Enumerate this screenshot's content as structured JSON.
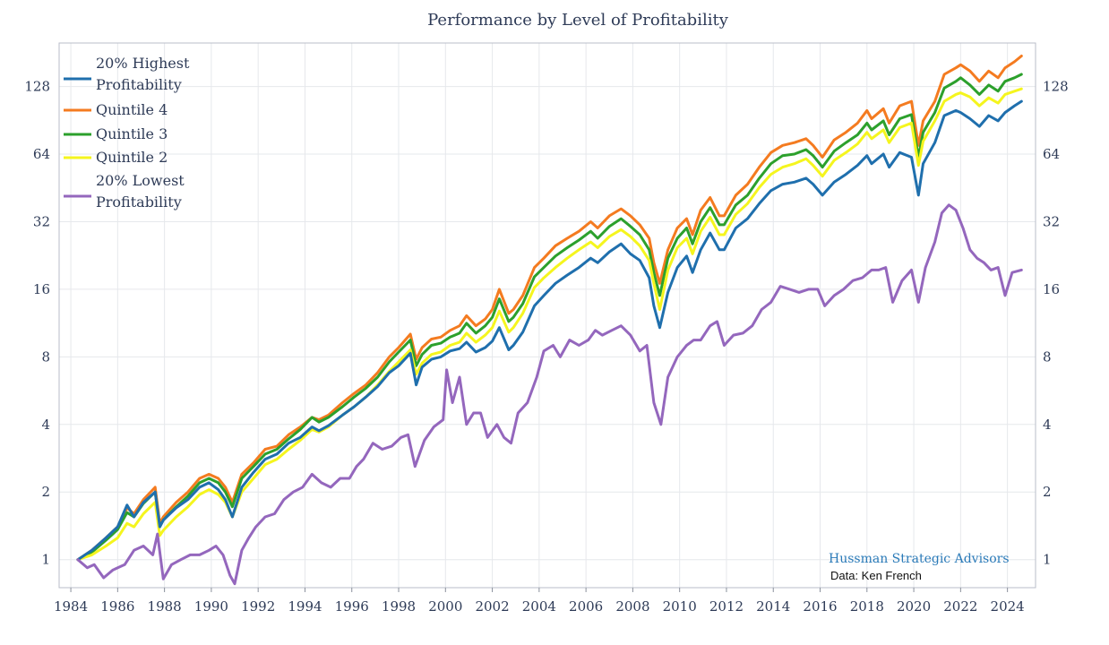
{
  "chart_data": {
    "type": "line",
    "title": "Performance by Level of Profitability",
    "xlabel": "",
    "ylabel": "",
    "y_scale": "log2",
    "ylim": [
      0.75,
      200
    ],
    "xlim": [
      1983.5,
      2025.2
    ],
    "y_ticks": [
      1,
      2,
      4,
      8,
      16,
      32,
      64,
      128
    ],
    "y_tick_labels": [
      "1",
      "2",
      "4",
      "8",
      "16",
      "32",
      "64",
      "128"
    ],
    "x_ticks": [
      1984,
      1986,
      1988,
      1990,
      1992,
      1994,
      1996,
      1998,
      2000,
      2002,
      2004,
      2006,
      2008,
      2010,
      2012,
      2014,
      2016,
      2018,
      2020,
      2022,
      2024
    ],
    "x_tick_labels": [
      "1984",
      "1986",
      "1988",
      "1990",
      "1992",
      "1994",
      "1996",
      "1998",
      "2000",
      "2002",
      "2004",
      "2006",
      "2008",
      "2010",
      "2012",
      "2014",
      "2016",
      "2018",
      "2020",
      "2022",
      "2024"
    ],
    "grid": true,
    "legend_position": "top-left",
    "legend": [
      {
        "line1": "20% Highest",
        "line2": "Profitability",
        "color": "#1f6fad"
      },
      {
        "line1": "Quintile 4",
        "line2": "",
        "color": "#f47b20"
      },
      {
        "line1": "Quintile 3",
        "line2": "",
        "color": "#2ca02c"
      },
      {
        "line1": "Quintile 2",
        "line2": "",
        "color": "#f5f51e"
      },
      {
        "line1": "20% Lowest",
        "line2": "Profitability",
        "color": "#9467bd"
      }
    ],
    "annotation": {
      "main": "Hussman Strategic Advisors",
      "sub": "Data: Ken French"
    },
    "series": [
      {
        "name": "Quintile 4",
        "color": "#f47b20",
        "x": [
          1984.3,
          1984.9,
          1985.5,
          1986.0,
          1986.4,
          1986.7,
          1987.1,
          1987.6,
          1987.8,
          1987.95,
          1988.5,
          1989.0,
          1989.5,
          1989.9,
          1990.3,
          1990.6,
          1990.9,
          1991.3,
          1991.8,
          1992.3,
          1992.8,
          1993.3,
          1993.8,
          1994.3,
          1994.6,
          1995.0,
          1995.6,
          1996.1,
          1996.6,
          1997.1,
          1997.6,
          1998.0,
          1998.5,
          1998.75,
          1999.0,
          1999.4,
          1999.8,
          2000.2,
          2000.6,
          2000.9,
          2001.3,
          2001.7,
          2002.0,
          2002.3,
          2002.7,
          2002.9,
          2003.3,
          2003.8,
          2004.2,
          2004.7,
          2005.2,
          2005.7,
          2006.2,
          2006.5,
          2007.0,
          2007.5,
          2007.9,
          2008.3,
          2008.7,
          2008.9,
          2009.15,
          2009.5,
          2009.9,
          2010.3,
          2010.55,
          2010.9,
          2011.3,
          2011.7,
          2011.9,
          2012.4,
          2012.9,
          2013.4,
          2013.9,
          2014.4,
          2014.9,
          2015.4,
          2015.7,
          2016.1,
          2016.6,
          2017.1,
          2017.6,
          2018.0,
          2018.2,
          2018.7,
          2018.95,
          2019.4,
          2019.9,
          2020.2,
          2020.4,
          2020.9,
          2021.3,
          2021.8,
          2022.0,
          2022.4,
          2022.8,
          2023.2,
          2023.6,
          2023.9,
          2024.3,
          2024.6
        ],
        "y": [
          1.0,
          1.1,
          1.25,
          1.4,
          1.7,
          1.6,
          1.85,
          2.1,
          1.45,
          1.55,
          1.8,
          2.0,
          2.3,
          2.4,
          2.3,
          2.1,
          1.8,
          2.4,
          2.7,
          3.1,
          3.2,
          3.6,
          3.9,
          4.3,
          4.2,
          4.4,
          5.0,
          5.5,
          6.0,
          6.8,
          8.0,
          8.8,
          10.1,
          7.8,
          8.8,
          9.6,
          9.8,
          10.5,
          11.0,
          12.2,
          11.0,
          11.8,
          13.0,
          16.0,
          12.5,
          13.0,
          15.0,
          20.0,
          22.0,
          25.0,
          27.0,
          29.0,
          32.0,
          30.0,
          34.0,
          36.5,
          34.0,
          31.0,
          27.0,
          21.0,
          17.0,
          24.0,
          30.0,
          33.0,
          28.0,
          36.0,
          41.0,
          34.0,
          34.0,
          42.0,
          47.0,
          56.0,
          65.0,
          70.0,
          72.0,
          75.0,
          70.0,
          62.0,
          74.0,
          80.0,
          88.0,
          100.0,
          92.0,
          102.0,
          88.0,
          105.0,
          110.0,
          70.0,
          90.0,
          110.0,
          145.0,
          155.0,
          160.0,
          150.0,
          135.0,
          150.0,
          140.0,
          155.0,
          165.0,
          175.0
        ]
      },
      {
        "name": "Quintile 3",
        "color": "#2ca02c",
        "x": [
          1984.3,
          1984.9,
          1985.5,
          1986.0,
          1986.4,
          1986.7,
          1987.1,
          1987.6,
          1987.8,
          1987.95,
          1988.5,
          1989.0,
          1989.5,
          1989.9,
          1990.3,
          1990.6,
          1990.9,
          1991.3,
          1991.8,
          1992.3,
          1992.8,
          1993.3,
          1993.8,
          1994.3,
          1994.6,
          1995.0,
          1995.6,
          1996.1,
          1996.6,
          1997.1,
          1997.6,
          1998.0,
          1998.5,
          1998.75,
          1999.0,
          1999.4,
          1999.8,
          2000.2,
          2000.6,
          2000.9,
          2001.3,
          2001.7,
          2002.0,
          2002.3,
          2002.7,
          2002.9,
          2003.3,
          2003.8,
          2004.2,
          2004.7,
          2005.2,
          2005.7,
          2006.2,
          2006.5,
          2007.0,
          2007.5,
          2007.9,
          2008.3,
          2008.7,
          2008.9,
          2009.15,
          2009.5,
          2009.9,
          2010.3,
          2010.55,
          2010.9,
          2011.3,
          2011.7,
          2011.9,
          2012.4,
          2012.9,
          2013.4,
          2013.9,
          2014.4,
          2014.9,
          2015.4,
          2015.7,
          2016.1,
          2016.6,
          2017.1,
          2017.6,
          2018.0,
          2018.2,
          2018.7,
          2018.95,
          2019.4,
          2019.9,
          2020.2,
          2020.4,
          2020.9,
          2021.3,
          2021.8,
          2022.0,
          2022.4,
          2022.8,
          2023.2,
          2023.6,
          2023.9,
          2024.3,
          2024.6
        ],
        "y": [
          1.0,
          1.08,
          1.22,
          1.36,
          1.62,
          1.55,
          1.78,
          2.0,
          1.4,
          1.5,
          1.72,
          1.92,
          2.2,
          2.3,
          2.2,
          2.0,
          1.72,
          2.3,
          2.6,
          2.95,
          3.1,
          3.45,
          3.8,
          4.3,
          4.1,
          4.3,
          4.8,
          5.3,
          5.8,
          6.5,
          7.6,
          8.4,
          9.5,
          7.3,
          8.2,
          9.0,
          9.2,
          9.8,
          10.2,
          11.3,
          10.2,
          11.0,
          12.0,
          14.5,
          11.5,
          12.0,
          13.8,
          18.2,
          20.0,
          22.5,
          24.5,
          26.5,
          29.0,
          27.0,
          30.5,
          33.0,
          30.5,
          28.0,
          24.0,
          19.0,
          15.0,
          22.0,
          27.0,
          30.0,
          25.5,
          32.0,
          37.0,
          31.0,
          31.0,
          38.0,
          42.0,
          50.0,
          58.0,
          63.0,
          64.0,
          67.0,
          63.0,
          56.0,
          66.0,
          72.0,
          78.0,
          88.0,
          82.0,
          90.0,
          78.0,
          92.0,
          96.0,
          62.0,
          80.0,
          98.0,
          126.0,
          135.0,
          140.0,
          130.0,
          118.0,
          130.0,
          122.0,
          135.0,
          140.0,
          145.0
        ]
      },
      {
        "name": "Quintile 2",
        "color": "#f5f51e",
        "x": [
          1984.3,
          1984.9,
          1985.5,
          1986.0,
          1986.4,
          1986.7,
          1987.1,
          1987.6,
          1987.8,
          1987.95,
          1988.5,
          1989.0,
          1989.5,
          1989.9,
          1990.3,
          1990.6,
          1990.9,
          1991.3,
          1991.8,
          1992.3,
          1992.8,
          1993.3,
          1993.8,
          1994.3,
          1994.6,
          1995.0,
          1995.6,
          1996.1,
          1996.6,
          1997.1,
          1997.6,
          1998.0,
          1998.5,
          1998.75,
          1999.0,
          1999.4,
          1999.8,
          2000.2,
          2000.6,
          2000.9,
          2001.3,
          2001.7,
          2002.0,
          2002.3,
          2002.7,
          2002.9,
          2003.3,
          2003.8,
          2004.2,
          2004.7,
          2005.2,
          2005.7,
          2006.2,
          2006.5,
          2007.0,
          2007.5,
          2007.9,
          2008.3,
          2008.7,
          2008.9,
          2009.15,
          2009.5,
          2009.9,
          2010.3,
          2010.55,
          2010.9,
          2011.3,
          2011.7,
          2011.9,
          2012.4,
          2012.9,
          2013.4,
          2013.9,
          2014.4,
          2014.9,
          2015.4,
          2015.7,
          2016.1,
          2016.6,
          2017.1,
          2017.6,
          2018.0,
          2018.2,
          2018.7,
          2018.95,
          2019.4,
          2019.9,
          2020.2,
          2020.4,
          2020.9,
          2021.3,
          2021.8,
          2022.0,
          2022.4,
          2022.8,
          2023.2,
          2023.6,
          2023.9,
          2024.3,
          2024.6
        ],
        "y": [
          1.0,
          1.05,
          1.15,
          1.25,
          1.45,
          1.4,
          1.6,
          1.8,
          1.28,
          1.35,
          1.55,
          1.72,
          1.95,
          2.05,
          1.95,
          1.8,
          1.55,
          2.0,
          2.3,
          2.65,
          2.8,
          3.1,
          3.4,
          3.8,
          3.7,
          3.9,
          4.4,
          4.8,
          5.3,
          6.0,
          6.9,
          7.6,
          8.6,
          6.7,
          7.5,
          8.2,
          8.4,
          9.0,
          9.3,
          10.2,
          9.3,
          10.0,
          10.8,
          12.8,
          10.3,
          10.8,
          12.5,
          16.3,
          18.0,
          20.0,
          22.0,
          24.0,
          26.0,
          24.5,
          27.5,
          29.5,
          27.5,
          25.0,
          21.5,
          17.0,
          13.0,
          19.5,
          24.5,
          27.0,
          23.0,
          29.0,
          33.5,
          28.0,
          28.0,
          34.5,
          38.5,
          45.5,
          52.0,
          56.0,
          58.0,
          61.0,
          57.0,
          51.0,
          60.0,
          65.0,
          71.0,
          80.0,
          75.0,
          82.0,
          72.0,
          84.0,
          88.0,
          57.0,
          73.0,
          90.0,
          110.0,
          118.0,
          120.0,
          115.0,
          105.0,
          114.0,
          108.0,
          118.0,
          122.0,
          125.0
        ]
      },
      {
        "name": "20% Highest Profitability",
        "color": "#1f6fad",
        "x": [
          1984.3,
          1984.9,
          1985.5,
          1986.0,
          1986.4,
          1986.7,
          1987.1,
          1987.6,
          1987.8,
          1987.95,
          1988.5,
          1989.0,
          1989.5,
          1989.9,
          1990.3,
          1990.6,
          1990.9,
          1991.3,
          1991.8,
          1992.3,
          1992.8,
          1993.3,
          1993.8,
          1994.3,
          1994.6,
          1995.0,
          1995.6,
          1996.1,
          1996.6,
          1997.1,
          1997.6,
          1998.0,
          1998.5,
          1998.75,
          1999.0,
          1999.4,
          1999.8,
          2000.2,
          2000.6,
          2000.9,
          2001.3,
          2001.7,
          2002.0,
          2002.3,
          2002.7,
          2002.9,
          2003.3,
          2003.8,
          2004.2,
          2004.7,
          2005.2,
          2005.7,
          2006.2,
          2006.5,
          2007.0,
          2007.5,
          2007.9,
          2008.3,
          2008.7,
          2008.9,
          2009.15,
          2009.5,
          2009.9,
          2010.3,
          2010.55,
          2010.9,
          2011.3,
          2011.7,
          2011.9,
          2012.4,
          2012.9,
          2013.4,
          2013.9,
          2014.4,
          2014.9,
          2015.4,
          2015.7,
          2016.1,
          2016.6,
          2017.1,
          2017.6,
          2018.0,
          2018.2,
          2018.7,
          2018.95,
          2019.4,
          2019.9,
          2020.2,
          2020.4,
          2020.9,
          2021.3,
          2021.8,
          2022.0,
          2022.4,
          2022.8,
          2023.2,
          2023.6,
          2023.9,
          2024.3,
          2024.6
        ],
        "y": [
          1.0,
          1.1,
          1.25,
          1.4,
          1.75,
          1.55,
          1.8,
          2.0,
          1.4,
          1.5,
          1.7,
          1.85,
          2.1,
          2.2,
          2.05,
          1.85,
          1.55,
          2.1,
          2.45,
          2.8,
          2.95,
          3.3,
          3.5,
          3.9,
          3.75,
          3.95,
          4.4,
          4.8,
          5.3,
          5.9,
          6.8,
          7.3,
          8.3,
          6.0,
          7.2,
          7.8,
          8.0,
          8.5,
          8.7,
          9.3,
          8.4,
          8.8,
          9.4,
          10.8,
          8.6,
          9.0,
          10.3,
          13.5,
          15.0,
          17.0,
          18.5,
          20.0,
          22.0,
          21.0,
          23.5,
          25.5,
          23.0,
          21.5,
          18.0,
          13.5,
          10.8,
          15.5,
          20.0,
          22.5,
          19.0,
          24.0,
          28.5,
          24.0,
          24.0,
          30.0,
          33.0,
          38.5,
          44.0,
          47.0,
          48.0,
          50.0,
          47.0,
          42.0,
          48.0,
          52.0,
          57.0,
          63.0,
          58.0,
          64.0,
          56.0,
          65.0,
          62.0,
          42.0,
          58.0,
          72.0,
          95.0,
          100.0,
          98.0,
          92.0,
          85.0,
          95.0,
          90.0,
          98.0,
          105.0,
          110.0
        ]
      },
      {
        "name": "20% Lowest Profitability",
        "color": "#9467bd",
        "x": [
          1984.3,
          1984.7,
          1985.0,
          1985.4,
          1985.8,
          1986.3,
          1986.7,
          1987.1,
          1987.5,
          1987.7,
          1987.95,
          1988.3,
          1988.7,
          1989.1,
          1989.5,
          1989.9,
          1990.2,
          1990.5,
          1990.8,
          1991.0,
          1991.3,
          1991.6,
          1991.9,
          1992.3,
          1992.7,
          1993.1,
          1993.5,
          1993.9,
          1994.3,
          1994.7,
          1995.1,
          1995.5,
          1995.9,
          1996.2,
          1996.5,
          1996.9,
          1997.3,
          1997.7,
          1998.1,
          1998.4,
          1998.7,
          1999.1,
          1999.5,
          1999.9,
          2000.05,
          2000.3,
          2000.6,
          2000.9,
          2001.2,
          2001.5,
          2001.8,
          2002.2,
          2002.5,
          2002.8,
          2003.1,
          2003.5,
          2003.9,
          2004.2,
          2004.6,
          2004.9,
          2005.3,
          2005.7,
          2006.1,
          2006.4,
          2006.7,
          2007.1,
          2007.5,
          2007.9,
          2008.3,
          2008.6,
          2008.9,
          2009.2,
          2009.5,
          2009.9,
          2010.3,
          2010.6,
          2010.9,
          2011.3,
          2011.6,
          2011.9,
          2012.3,
          2012.7,
          2013.1,
          2013.5,
          2013.9,
          2014.3,
          2014.7,
          2015.1,
          2015.5,
          2015.9,
          2016.2,
          2016.6,
          2017.0,
          2017.4,
          2017.8,
          2018.2,
          2018.5,
          2018.8,
          2019.1,
          2019.5,
          2019.9,
          2020.2,
          2020.5,
          2020.9,
          2021.2,
          2021.5,
          2021.8,
          2022.1,
          2022.4,
          2022.7,
          2023.0,
          2023.3,
          2023.6,
          2023.9,
          2024.2,
          2024.6
        ],
        "y": [
          1.0,
          0.92,
          0.95,
          0.83,
          0.9,
          0.95,
          1.1,
          1.15,
          1.05,
          1.3,
          0.82,
          0.95,
          1.0,
          1.05,
          1.05,
          1.1,
          1.15,
          1.05,
          0.85,
          0.78,
          1.1,
          1.25,
          1.4,
          1.55,
          1.6,
          1.85,
          2.0,
          2.1,
          2.4,
          2.2,
          2.1,
          2.3,
          2.3,
          2.6,
          2.8,
          3.3,
          3.1,
          3.2,
          3.5,
          3.6,
          2.6,
          3.4,
          3.9,
          4.2,
          7.0,
          5.0,
          6.5,
          4.0,
          4.5,
          4.5,
          3.5,
          4.0,
          3.5,
          3.3,
          4.5,
          5.0,
          6.5,
          8.5,
          9.0,
          8.0,
          9.5,
          9.0,
          9.5,
          10.5,
          10.0,
          10.5,
          11.0,
          10.0,
          8.5,
          9.0,
          5.0,
          4.0,
          6.5,
          8.0,
          9.0,
          9.5,
          9.5,
          11.0,
          11.5,
          9.0,
          10.0,
          10.2,
          11.0,
          13.0,
          14.0,
          16.5,
          16.0,
          15.5,
          16.0,
          16.0,
          13.5,
          15.0,
          16.0,
          17.5,
          18.0,
          19.5,
          19.5,
          20.0,
          14.0,
          17.5,
          19.5,
          14.0,
          20.0,
          26.0,
          35.0,
          38.0,
          36.0,
          30.0,
          24.0,
          22.0,
          21.0,
          19.5,
          20.0,
          15.0,
          19.0,
          19.5
        ]
      }
    ]
  }
}
